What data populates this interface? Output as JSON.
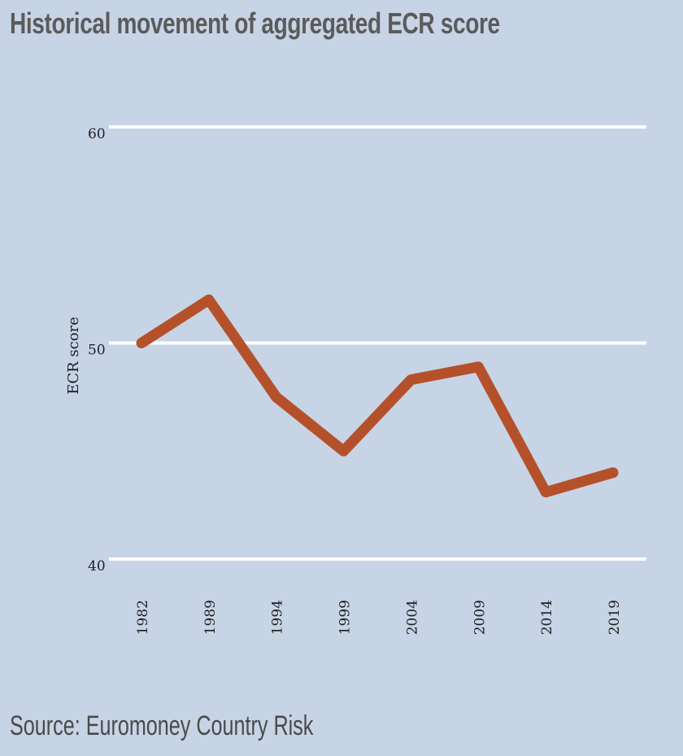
{
  "title": "Historical movement of aggregated ECR score",
  "source": "Source: Euromoney Country Risk",
  "colors": {
    "background": "#c7d4e6",
    "line": "#b5512a",
    "grid": "#ffffff"
  },
  "chart_data": {
    "type": "line",
    "x": [
      "1982",
      "1989",
      "1994",
      "1999",
      "2004",
      "2009",
      "2014",
      "2019"
    ],
    "series": [
      {
        "values": [
          50.0,
          52.0,
          47.5,
          45.0,
          48.3,
          48.9,
          43.1,
          44.0
        ]
      }
    ],
    "ylabel": "ECR score",
    "xlabel": "",
    "ylim": [
      40,
      60
    ],
    "yticks": [
      "40",
      "50",
      "60"
    ],
    "grid": true
  }
}
